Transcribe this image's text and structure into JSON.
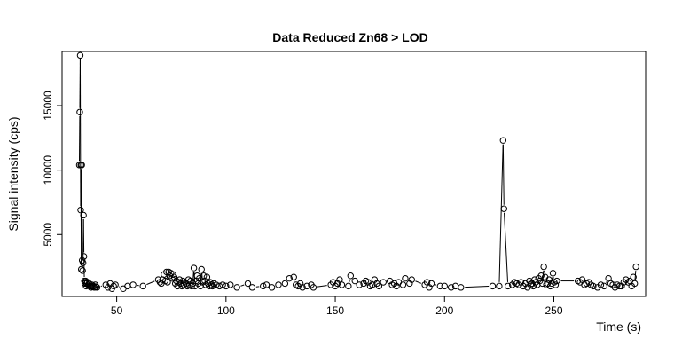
{
  "chart_data": {
    "type": "scatter",
    "title": "Data Reduced Zn68 > LOD",
    "xlabel": "Time (s)",
    "ylabel": "Signal intensity (cps)",
    "xlim": [
      25,
      292
    ],
    "ylim": [
      200,
      19200
    ],
    "x_ticks": [
      50,
      100,
      150,
      200,
      250
    ],
    "y_ticks": [
      5000,
      10000,
      15000
    ],
    "grid": false,
    "legend": "none",
    "colors": {
      "points": "#000000",
      "line": "#000000",
      "frame": "#000000"
    },
    "series": [
      {
        "style": "points-with-lines",
        "x": [
          32.9,
          33.1,
          33.3,
          33.5,
          33.6,
          33.8,
          34.0,
          34.2,
          34.4,
          34.6,
          34.8,
          35.0,
          35.2,
          35.4,
          35.6,
          35.8,
          36.0,
          36.2,
          36.6,
          37.0,
          37.4,
          37.8,
          38.2,
          38.6,
          39.0,
          39.4,
          39.8,
          40.2,
          40.6,
          41.0,
          45.0,
          46.0,
          47.0,
          47.8,
          48.6,
          49.4,
          53.0,
          55.0,
          57.5,
          62.0,
          69.0,
          69.8,
          70.4,
          71.0,
          71.6,
          72.2,
          72.8,
          73.3,
          73.8,
          74.3,
          74.8,
          75.3,
          75.8,
          76.3,
          76.8,
          77.3,
          77.8,
          78.3,
          78.8,
          79.3,
          79.8,
          80.3,
          80.8,
          81.3,
          81.8,
          82.3,
          82.8,
          83.3,
          83.8,
          84.3,
          84.8,
          85.3,
          85.8,
          86.3,
          86.8,
          87.3,
          87.8,
          88.3,
          88.8,
          89.3,
          89.8,
          90.3,
          90.8,
          91.3,
          91.8,
          92.3,
          92.8,
          93.3,
          93.8,
          94.3,
          95.5,
          97.0,
          98.5,
          100.0,
          102.0,
          105.0,
          110.0,
          112.0,
          117.0,
          118.5,
          121.0,
          124.0,
          127.0,
          129.0,
          131.0,
          132.0,
          133.0,
          134.0,
          135.0,
          137.0,
          139.0,
          140.0,
          148.0,
          149.0,
          150.0,
          151.0,
          152.0,
          153.0,
          156.0,
          157.0,
          159.0,
          161.0,
          163.0,
          164.0,
          165.0,
          166.0,
          167.0,
          168.0,
          169.0,
          170.0,
          172.0,
          175.0,
          176.0,
          177.0,
          178.0,
          179.0,
          181.0,
          182.0,
          184.0,
          185.0,
          191.0,
          192.0,
          193.0,
          194.0,
          198.0,
          200.0,
          203.0,
          205.0,
          207.5,
          222.0,
          225.0,
          226.8,
          227.2,
          229.0,
          231.0,
          232.0,
          233.0,
          234.0,
          235.0,
          236.0,
          237.0,
          238.0,
          238.8,
          239.4,
          240.0,
          240.6,
          241.2,
          241.8,
          242.4,
          243.0,
          243.6,
          244.2,
          244.8,
          245.4,
          246.0,
          246.6,
          247.2,
          247.8,
          248.4,
          249.0,
          249.6,
          250.2,
          250.8,
          251.4,
          261.0,
          262.0,
          263.0,
          264.0,
          265.0,
          266.0,
          267.0,
          268.0,
          270.0,
          271.5,
          273.0,
          275.0,
          276.0,
          277.0,
          278.0,
          279.0,
          280.0,
          281.0,
          282.0,
          283.0,
          284.0,
          284.8,
          285.6,
          286.4,
          287.0,
          287.6
        ],
        "y": [
          10400,
          14500,
          18900,
          6900,
          10400,
          2300,
          10400,
          3000,
          2200,
          2800,
          6500,
          3300,
          1400,
          1200,
          1300,
          1400,
          1000,
          1200,
          1300,
          1100,
          1200,
          1000,
          900,
          1100,
          950,
          1000,
          900,
          1100,
          950,
          900,
          1100,
          900,
          1200,
          800,
          1000,
          1100,
          800,
          1000,
          1100,
          1000,
          1500,
          1300,
          1200,
          1500,
          1900,
          1400,
          2100,
          1300,
          2100,
          1800,
          2000,
          1600,
          1900,
          1700,
          1200,
          1400,
          1000,
          1300,
          1500,
          1200,
          1000,
          1400,
          1100,
          1300,
          1200,
          1000,
          1500,
          1100,
          1400,
          1000,
          1200,
          2400,
          1000,
          1400,
          1800,
          1200,
          1600,
          1000,
          2300,
          1300,
          1800,
          1400,
          1100,
          1700,
          1200,
          1000,
          1300,
          1100,
          1000,
          1200,
          1100,
          1000,
          1100,
          1000,
          1100,
          900,
          1200,
          900,
          1000,
          1100,
          900,
          1100,
          1200,
          1600,
          1700,
          1100,
          1000,
          1200,
          900,
          1000,
          1100,
          900,
          1100,
          1300,
          1000,
          1200,
          1500,
          1100,
          1000,
          1800,
          1400,
          1100,
          1200,
          1400,
          1300,
          1000,
          1100,
          1500,
          1200,
          1000,
          1300,
          1400,
          1100,
          1200,
          1000,
          1300,
          1100,
          1600,
          1200,
          1500,
          1100,
          1300,
          900,
          1200,
          1000,
          1000,
          900,
          1000,
          900,
          1000,
          1000,
          12300,
          7000,
          1000,
          1100,
          1300,
          1200,
          1100,
          1300,
          1000,
          1200,
          900,
          1400,
          1100,
          1200,
          1000,
          1500,
          1300,
          1100,
          1600,
          1400,
          1800,
          1200,
          2500,
          1700,
          1100,
          1200,
          1500,
          1000,
          1200,
          2000,
          1300,
          1100,
          1400,
          1400,
          1300,
          1500,
          1100,
          1200,
          1300,
          1100,
          1000,
          900,
          1100,
          1000,
          1600,
          1200,
          1100,
          900,
          1100,
          1000,
          1000,
          1300,
          1500,
          1300,
          1400,
          1000,
          1700,
          1200,
          2500
        ]
      }
    ]
  }
}
